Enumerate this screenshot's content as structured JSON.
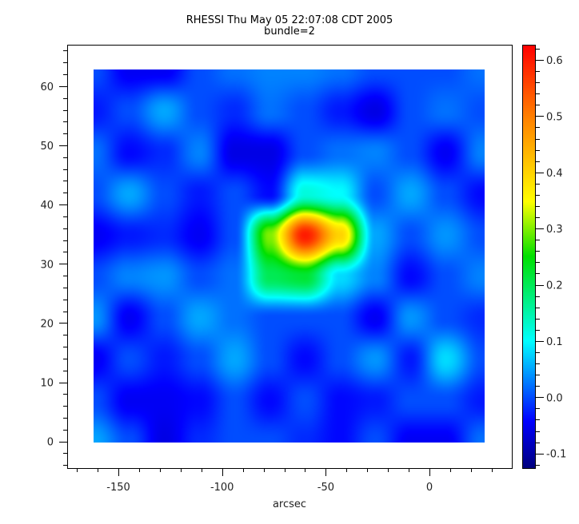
{
  "chart_data": {
    "type": "heatmap",
    "title": "RHESSI Thu May 05 22:07:08 CDT 2005",
    "subtitle": "bundle=2",
    "xlabel": "arcsec",
    "ylabel": "",
    "xlim": [
      -174.7,
      39.7
    ],
    "ylim": [
      -4.5,
      67
    ],
    "image_extent": {
      "x": [
        -162,
        26.6
      ],
      "y": [
        0,
        63
      ]
    },
    "x_ticks": [
      "-150",
      "-100",
      "-50",
      "0"
    ],
    "x_tick_values": [
      -150,
      -100,
      -50,
      0
    ],
    "y_ticks": [
      "0",
      "10",
      "20",
      "30",
      "40",
      "50",
      "60"
    ],
    "y_tick_values": [
      0,
      10,
      20,
      30,
      40,
      50,
      60
    ],
    "colorbar": {
      "range": [
        -0.126,
        0.627
      ],
      "ticks": [
        "-0.1",
        "0.0",
        "0.1",
        "0.2",
        "0.3",
        "0.4",
        "0.5",
        "0.6"
      ],
      "tick_values": [
        -0.1,
        0.0,
        0.1,
        0.2,
        0.3,
        0.4,
        0.5,
        0.6
      ],
      "colormap": "rainbow",
      "stops": [
        "#00007f",
        "#0000ff",
        "#00ffff",
        "#00e000",
        "#ffff00",
        "#ff8000",
        "#ff0000"
      ]
    },
    "grid": false,
    "grid_x": [
      -162,
      -145,
      -128,
      -111,
      -94,
      -77,
      -60,
      -43,
      -26,
      -9,
      8,
      26
    ],
    "grid_y": [
      63,
      56,
      49,
      42,
      35,
      28,
      21,
      14,
      7,
      0
    ],
    "values": [
      [
        0.0,
        -0.05,
        -0.05,
        0.0,
        0.02,
        0.03,
        0.03,
        0.02,
        0.0,
        0.0,
        0.0,
        0.02
      ],
      [
        -0.03,
        0.0,
        0.05,
        0.0,
        -0.02,
        0.02,
        0.0,
        -0.03,
        -0.06,
        0.0,
        0.02,
        0.0
      ],
      [
        0.02,
        -0.04,
        -0.02,
        0.03,
        -0.06,
        -0.06,
        0.0,
        0.02,
        0.03,
        0.0,
        -0.05,
        0.03
      ],
      [
        0.0,
        0.05,
        0.0,
        -0.03,
        0.0,
        -0.04,
        0.12,
        0.1,
        0.0,
        0.05,
        0.0,
        -0.04
      ],
      [
        -0.05,
        -0.03,
        -0.02,
        -0.05,
        0.0,
        0.3,
        0.6,
        0.4,
        0.05,
        0.0,
        0.04,
        0.0
      ],
      [
        0.0,
        0.03,
        0.04,
        0.0,
        0.02,
        0.2,
        0.22,
        0.08,
        0.03,
        -0.04,
        0.0,
        0.03
      ],
      [
        0.04,
        -0.05,
        0.0,
        0.05,
        0.02,
        0.0,
        0.0,
        0.0,
        -0.05,
        0.04,
        0.0,
        -0.02
      ],
      [
        -0.05,
        0.0,
        -0.03,
        0.0,
        0.05,
        0.0,
        -0.04,
        0.0,
        0.04,
        -0.03,
        0.08,
        0.0
      ],
      [
        0.0,
        -0.05,
        -0.05,
        -0.04,
        0.0,
        -0.04,
        0.0,
        -0.04,
        -0.03,
        0.0,
        0.0,
        -0.03
      ],
      [
        0.05,
        0.0,
        -0.06,
        -0.02,
        0.0,
        0.0,
        -0.02,
        -0.04,
        0.0,
        -0.05,
        -0.05,
        0.02
      ]
    ]
  }
}
